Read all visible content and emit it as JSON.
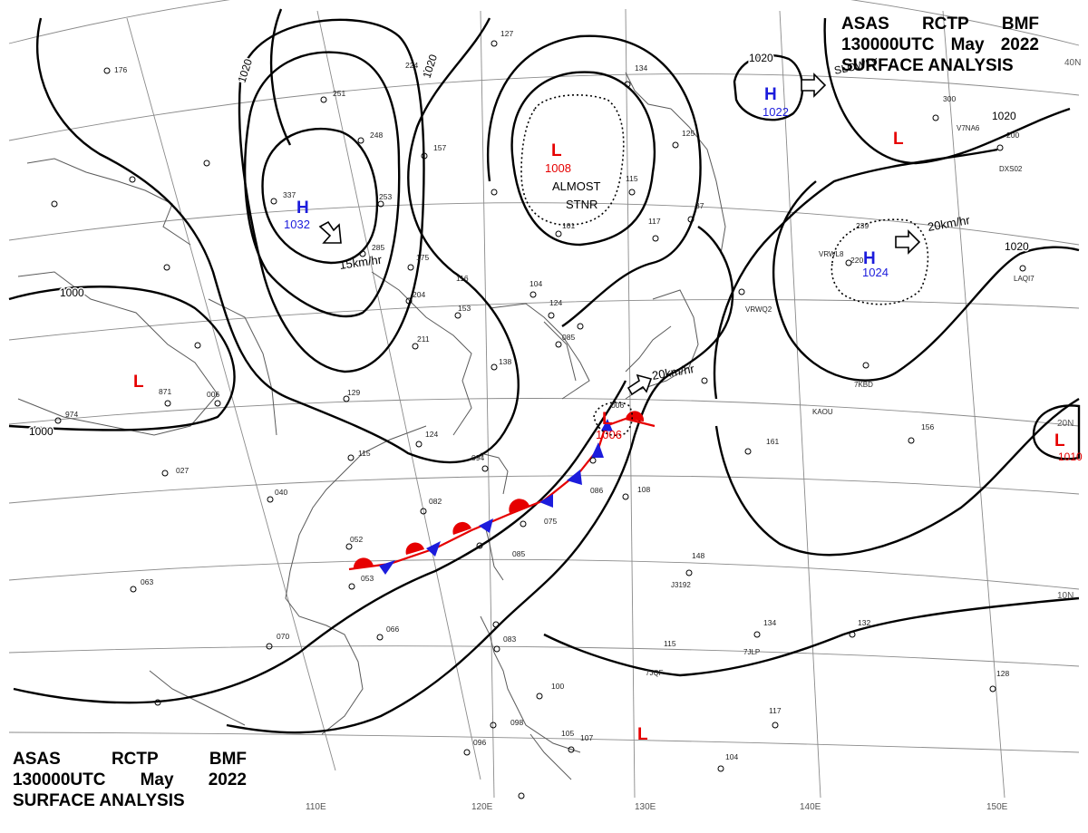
{
  "header": {
    "agency": [
      "ASAS",
      "RCTP",
      "BMF"
    ],
    "time": [
      "130000UTC",
      "May",
      "2022"
    ],
    "product": "SURFACE ANALYSIS"
  },
  "systems": [
    {
      "type": "H",
      "pressure": "1032",
      "motion": "15km/hr"
    },
    {
      "type": "H",
      "pressure": "1022",
      "motion": "SLOWLY"
    },
    {
      "type": "H",
      "pressure": "1024",
      "motion": "20km/hr"
    },
    {
      "type": "L",
      "pressure": "1008",
      "note": [
        "ALMOST",
        "STNR"
      ]
    },
    {
      "type": "L",
      "pressure": "1006",
      "motion": "20km/hr"
    },
    {
      "type": "L",
      "pressure": "1010"
    },
    {
      "type": "L",
      "pressure": ""
    },
    {
      "type": "L",
      "pressure": ""
    },
    {
      "type": "L",
      "pressure": ""
    }
  ],
  "isobar_labels": [
    "1020",
    "1020",
    "1000",
    "1000",
    "1020",
    "1020",
    "1020"
  ],
  "lon_labels": [
    "110E",
    "120E",
    "130E",
    "140E",
    "150E"
  ],
  "lat_labels": [
    "40N",
    "20N",
    "10N"
  ],
  "station_values": [
    "176",
    "251",
    "224",
    "248",
    "157",
    "337",
    "253",
    "285",
    "175",
    "204",
    "127",
    "134",
    "125",
    "115",
    "117",
    "37",
    "300",
    "200",
    "239",
    "220",
    "085",
    "124",
    "211",
    "153",
    "116",
    "104",
    "138",
    "871",
    "974",
    "006",
    "129",
    "027",
    "094",
    "115",
    "124",
    "082",
    "075",
    "085",
    "040",
    "052",
    "053",
    "148",
    "134",
    "132",
    "115",
    "070",
    "066",
    "083",
    "100",
    "098",
    "096",
    "107",
    "105",
    "128",
    "161",
    "156",
    "117",
    "104",
    "063",
    "101",
    "006",
    "108",
    "086"
  ],
  "ship_ids": [
    "VRWL8",
    "VRWQ2",
    "7KBD",
    "KAOU",
    "J3192",
    "7JLP",
    "7JQF",
    "DXS02",
    "V7NA6",
    "LAQI7"
  ],
  "colors": {
    "ink": "#000000",
    "high": "#1c1cdc",
    "low": "#e60000",
    "front_warm": "#e60000",
    "front_cold": "#1c1cdc",
    "map": "#5a5a5a",
    "grid": "#8a8a8a"
  }
}
